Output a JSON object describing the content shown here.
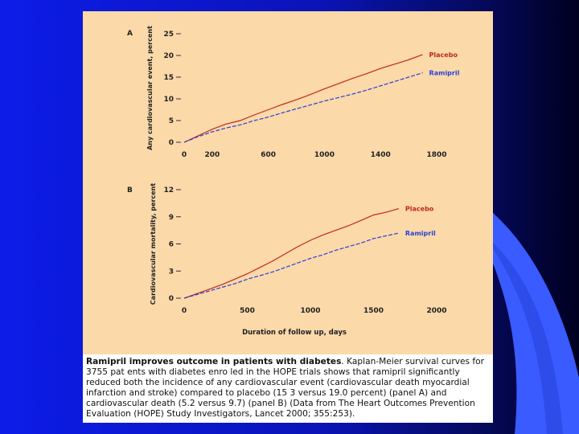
{
  "colors": {
    "background_blue": "#0d1ce8",
    "background_navy": "#050a60",
    "accent_blue": "#3a5bff",
    "figure_bg": "#fbd9a9",
    "placebo": "#c0281c",
    "ramipril": "#2a3fd8"
  },
  "chart_data": [
    {
      "type": "line",
      "panel_label": "A",
      "ylabel": "Any cardiovascular event, percent",
      "xlabel": "",
      "x_ticks": [
        0,
        200,
        600,
        1000,
        1400,
        1800
      ],
      "y_ticks": [
        0,
        5,
        10,
        15,
        20,
        25
      ],
      "xlim": [
        0,
        1800
      ],
      "ylim": [
        0,
        25
      ],
      "series": [
        {
          "name": "Placebo",
          "color": "#c0281c",
          "x": [
            0,
            100,
            200,
            300,
            400,
            500,
            600,
            700,
            800,
            900,
            1000,
            1100,
            1200,
            1300,
            1400,
            1500,
            1600,
            1700
          ],
          "y": [
            0,
            1.5,
            3.0,
            4.2,
            5.0,
            6.3,
            7.5,
            8.7,
            9.8,
            11.0,
            12.3,
            13.5,
            14.7,
            15.8,
            17.0,
            18.0,
            19.0,
            20.2
          ]
        },
        {
          "name": "Ramipril",
          "color": "#2a3fd8",
          "x": [
            0,
            100,
            200,
            300,
            400,
            500,
            600,
            700,
            800,
            900,
            1000,
            1100,
            1200,
            1300,
            1400,
            1500,
            1600,
            1700
          ],
          "y": [
            0,
            1.3,
            2.4,
            3.3,
            4.0,
            5.0,
            5.8,
            6.8,
            7.7,
            8.6,
            9.5,
            10.3,
            11.1,
            12.0,
            13.0,
            14.0,
            15.0,
            16.0
          ]
        }
      ]
    },
    {
      "type": "line",
      "panel_label": "B",
      "ylabel": "Cardiovascular mortality, percent",
      "xlabel": "Duration of follow up, days",
      "x_ticks": [
        0,
        500,
        1000,
        1500,
        2000
      ],
      "y_ticks": [
        0,
        3,
        6,
        9,
        12
      ],
      "y_tick_labels": [
        "0",
        "3",
        "6",
        "9",
        "12"
      ],
      "xlim": [
        0,
        2000
      ],
      "ylim": [
        0,
        12
      ],
      "series": [
        {
          "name": "Placebo",
          "color": "#c0281c",
          "x": [
            0,
            100,
            200,
            300,
            400,
            500,
            600,
            700,
            800,
            900,
            1000,
            1100,
            1200,
            1300,
            1400,
            1500,
            1600,
            1700
          ],
          "y": [
            0,
            0.5,
            1.0,
            1.5,
            2.1,
            2.7,
            3.4,
            4.1,
            4.9,
            5.7,
            6.4,
            7.0,
            7.5,
            8.0,
            8.6,
            9.2,
            9.5,
            9.9
          ]
        },
        {
          "name": "Ramipril",
          "color": "#2a3fd8",
          "x": [
            0,
            100,
            200,
            300,
            400,
            500,
            600,
            700,
            800,
            900,
            1000,
            1100,
            1200,
            1300,
            1400,
            1500,
            1600,
            1700
          ],
          "y": [
            0,
            0.4,
            0.8,
            1.2,
            1.6,
            2.1,
            2.5,
            2.9,
            3.4,
            3.9,
            4.4,
            4.8,
            5.3,
            5.7,
            6.1,
            6.6,
            6.9,
            7.2
          ]
        }
      ]
    }
  ],
  "caption": {
    "title": "Ramipril improves outcome in patients with diabetes",
    "text": "Kaplan-Meier survival curves for 3755 pat ents with diabetes enro led in the HOPE trials shows that ramipril significantly reduced both the incidence of any cardiovascular event (cardiovascular death myocardial infarction and stroke) compared to placebo (15 3 versus 19.0 percent) (panel A) and cardiovascular death (5.2 versus 9.7) (panel B) (Data from The Heart Outcomes Prevention Evaluation (HOPE) Study Investigators, Lancet 2000; 355:253)."
  }
}
